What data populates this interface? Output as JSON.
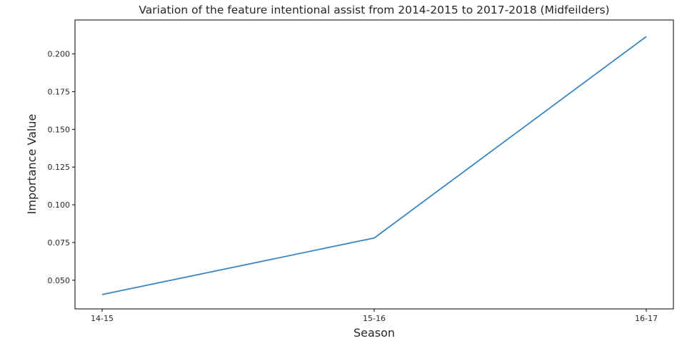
{
  "chart_data": {
    "type": "line",
    "title": "Variation of the feature intentional assist from 2014-2015 to 2017-2018 (Midfeilders)",
    "xlabel": "Season",
    "ylabel": "Importance Value",
    "categories": [
      "14-15",
      "15-16",
      "16-17"
    ],
    "series": [
      {
        "values": [
          0.0405,
          0.078,
          0.2115
        ]
      }
    ],
    "ylim": [
      0.031,
      0.2225
    ],
    "yticks": [
      0.05,
      0.075,
      0.1,
      0.125,
      0.15,
      0.175,
      0.2
    ],
    "ytick_labels": [
      "0.050",
      "0.075",
      "0.100",
      "0.125",
      "0.150",
      "0.175",
      "0.200"
    ],
    "grid": false,
    "line_color": "#3a87c0"
  }
}
